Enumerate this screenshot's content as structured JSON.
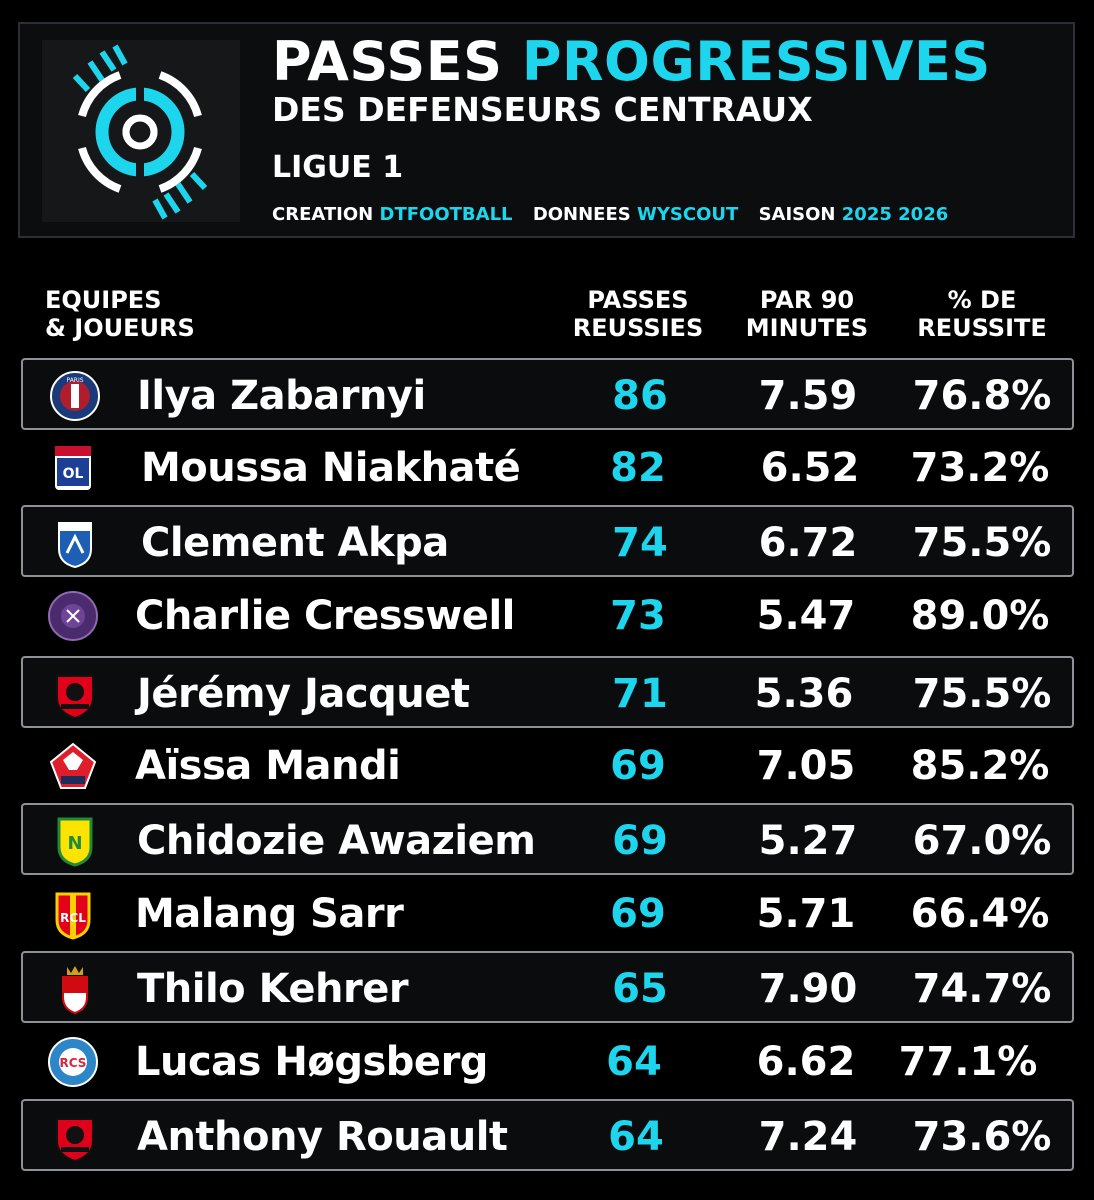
{
  "colors": {
    "accent": "#1dd6ee",
    "background": "#000000",
    "text": "#ffffff",
    "row_border": "#8e9296"
  },
  "header": {
    "logo_icon": "dtfootball-logo-icon",
    "title_word1": "PASSES",
    "title_word2": "PROGRESSIVES",
    "subtitle": "DES DEFENSEURS CENTRAUX",
    "league": "LIGUE 1",
    "credits": {
      "creation_label": "CREATION",
      "creation_value": "DTFOOTBALL",
      "data_label": "DONNEES",
      "data_value": "WYSCOUT",
      "season_label": "SAISON",
      "season_value": "2025 2026"
    }
  },
  "columns": {
    "team_line1": "EQUIPES",
    "team_line2": "& JOUEURS",
    "passes_line1": "PASSES",
    "passes_line2": "REUSSIES",
    "p90_line1": "PAR 90",
    "p90_line2": "MINUTES",
    "pct_line1": "% DE",
    "pct_line2": "REUSSITE"
  },
  "rows": [
    {
      "crest": "psg-crest-icon",
      "player": "Ilya Zabarnyi",
      "passes": "86",
      "per90": "7.59",
      "pct": "76.8%"
    },
    {
      "crest": "lyon-crest-icon",
      "player": "Moussa Niakhaté",
      "passes": "82",
      "per90": "6.52",
      "pct": "73.2%"
    },
    {
      "crest": "auxerre-crest-icon",
      "player": "Clement Akpa",
      "passes": "74",
      "per90": "6.72",
      "pct": "75.5%"
    },
    {
      "crest": "toulouse-crest-icon",
      "player": "Charlie Cresswell",
      "passes": "73",
      "per90": "5.47",
      "pct": "89.0%"
    },
    {
      "crest": "rennes-crest-icon",
      "player": "Jérémy Jacquet",
      "passes": "71",
      "per90": "5.36",
      "pct": "75.5%"
    },
    {
      "crest": "lille-crest-icon",
      "player": "Aïssa Mandi",
      "passes": "69",
      "per90": "7.05",
      "pct": "85.2%"
    },
    {
      "crest": "nantes-crest-icon",
      "player": "Chidozie Awaziem",
      "passes": "69",
      "per90": "5.27",
      "pct": "67.0%"
    },
    {
      "crest": "lens-crest-icon",
      "player": "Malang Sarr",
      "passes": "69",
      "per90": "5.71",
      "pct": "66.4%"
    },
    {
      "crest": "monaco-crest-icon",
      "player": "Thilo Kehrer",
      "passes": "65",
      "per90": "7.90",
      "pct": "74.7%"
    },
    {
      "crest": "strasbourg-crest-icon",
      "player": "Lucas Høgsberg",
      "passes": "64",
      "per90": "6.62",
      "pct": "77.1%"
    },
    {
      "crest": "rennes-crest-icon",
      "player": "Anthony Rouault",
      "passes": "64",
      "per90": "7.24",
      "pct": "73.6%"
    }
  ]
}
